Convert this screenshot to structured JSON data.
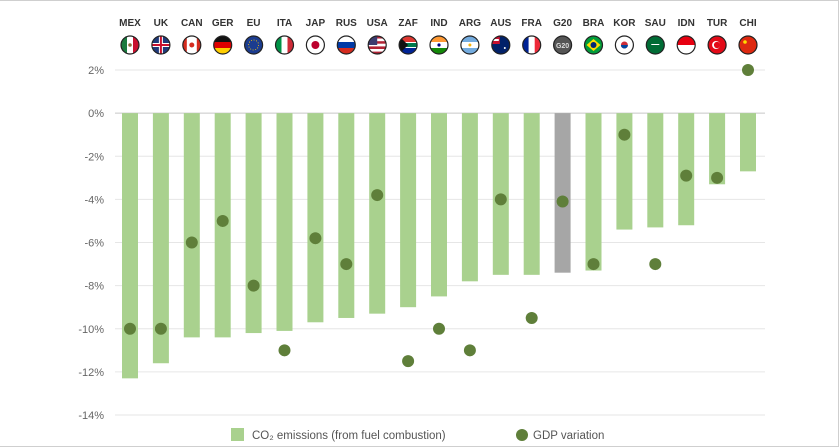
{
  "chart_data": {
    "type": "bar",
    "categories": [
      "MEX",
      "UK",
      "CAN",
      "GER",
      "EU",
      "ITA",
      "JAP",
      "RUS",
      "USA",
      "ZAF",
      "IND",
      "ARG",
      "AUS",
      "FRA",
      "G20",
      "BRA",
      "KOR",
      "SAU",
      "IDN",
      "TUR",
      "CHI"
    ],
    "series": [
      {
        "name": "CO₂ emissions (from fuel combustion)",
        "kind": "bar",
        "color": "#a9d18e",
        "highlight_color": "#a6a6a6",
        "highlight_category": "G20",
        "values": [
          -12.3,
          -11.6,
          -10.4,
          -10.4,
          -10.2,
          -10.1,
          -9.7,
          -9.5,
          -9.3,
          -9.0,
          -8.5,
          -7.8,
          -7.5,
          -7.5,
          -7.4,
          -7.3,
          -5.4,
          -5.3,
          -5.2,
          -3.3,
          -2.7
        ]
      },
      {
        "name": "GDP variation",
        "kind": "scatter",
        "color": "#5f7f3a",
        "values": [
          -10,
          -10,
          -6,
          -5,
          -8,
          -11,
          -5.8,
          -7,
          -3.8,
          -11.5,
          -10,
          -11,
          -4,
          -9.5,
          -4.1,
          -7,
          -1,
          -7,
          -2.9,
          -3,
          2
        ]
      }
    ],
    "yticks": [
      "2%",
      "0%",
      "-2%",
      "-4%",
      "-6%",
      "-8%",
      "-10%",
      "-12%",
      "-14%"
    ],
    "ylim": [
      -14,
      2
    ],
    "grid": true,
    "legend_position": "bottom",
    "flag_icons": [
      "mexico-flag",
      "uk-flag",
      "canada-flag",
      "germany-flag",
      "eu-flag",
      "italy-flag",
      "japan-flag",
      "russia-flag",
      "usa-flag",
      "south-africa-flag",
      "india-flag",
      "argentina-flag",
      "australia-flag",
      "france-flag",
      "g20-badge",
      "brazil-flag",
      "korea-flag",
      "saudi-flag",
      "indonesia-flag",
      "turkey-flag",
      "china-flag"
    ],
    "g20_badge_text": "G20"
  }
}
